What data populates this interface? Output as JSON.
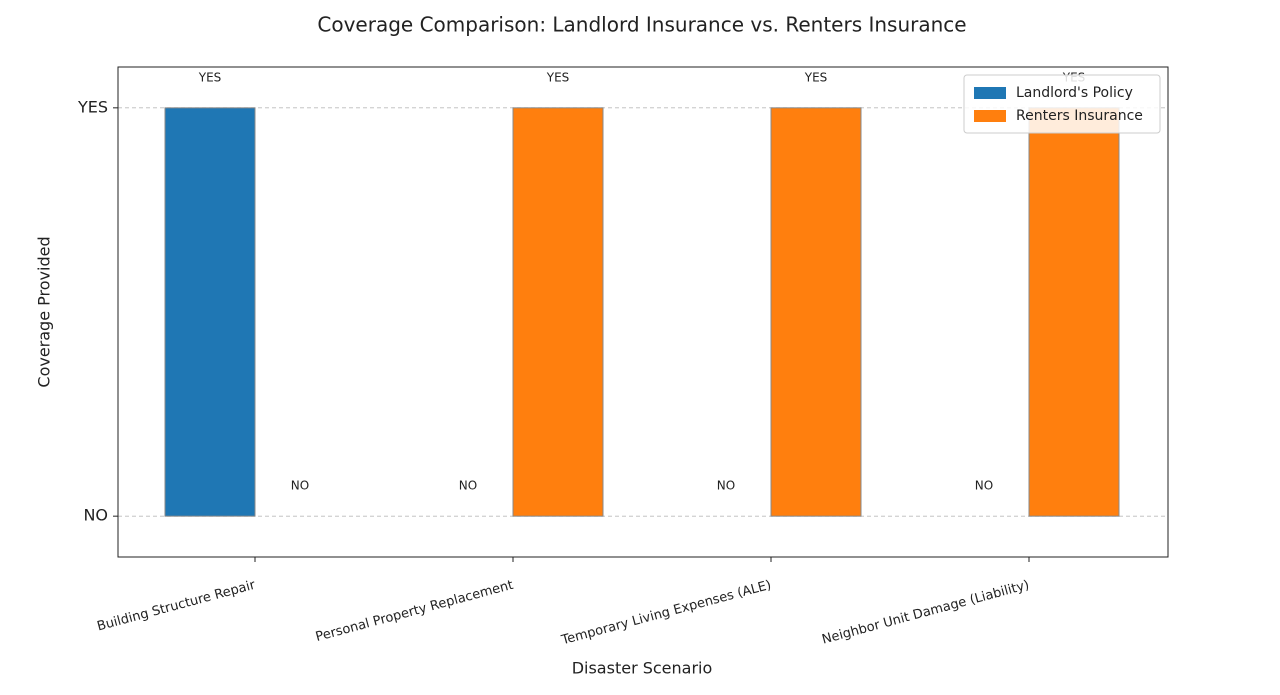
{
  "chart_data": {
    "type": "bar",
    "title": "Coverage Comparison: Landlord Insurance vs. Renters Insurance",
    "x_label": "Disaster Scenario",
    "y_label": "Coverage Provided",
    "categories": [
      "Building Structure Repair",
      "Personal Property Replacement",
      "Temporary Living Expenses (ALE)",
      "Neighbor Unit Damage (Liability)"
    ],
    "series": [
      {
        "name": "Landlord's Policy",
        "color": "#1f77b4",
        "values": [
          1,
          0,
          0,
          0
        ],
        "value_labels": [
          "YES",
          "NO",
          "NO",
          "NO"
        ]
      },
      {
        "name": "Renters Insurance",
        "color": "#ff7f0e",
        "values": [
          0,
          1,
          1,
          1
        ],
        "value_labels": [
          "NO",
          "YES",
          "YES",
          "YES"
        ]
      }
    ],
    "ylim": [
      -0.1,
      1.1
    ],
    "yticks": [
      {
        "value": 0,
        "label": "NO"
      },
      {
        "value": 1,
        "label": "YES"
      }
    ],
    "grid": true,
    "legend": "upper right"
  }
}
